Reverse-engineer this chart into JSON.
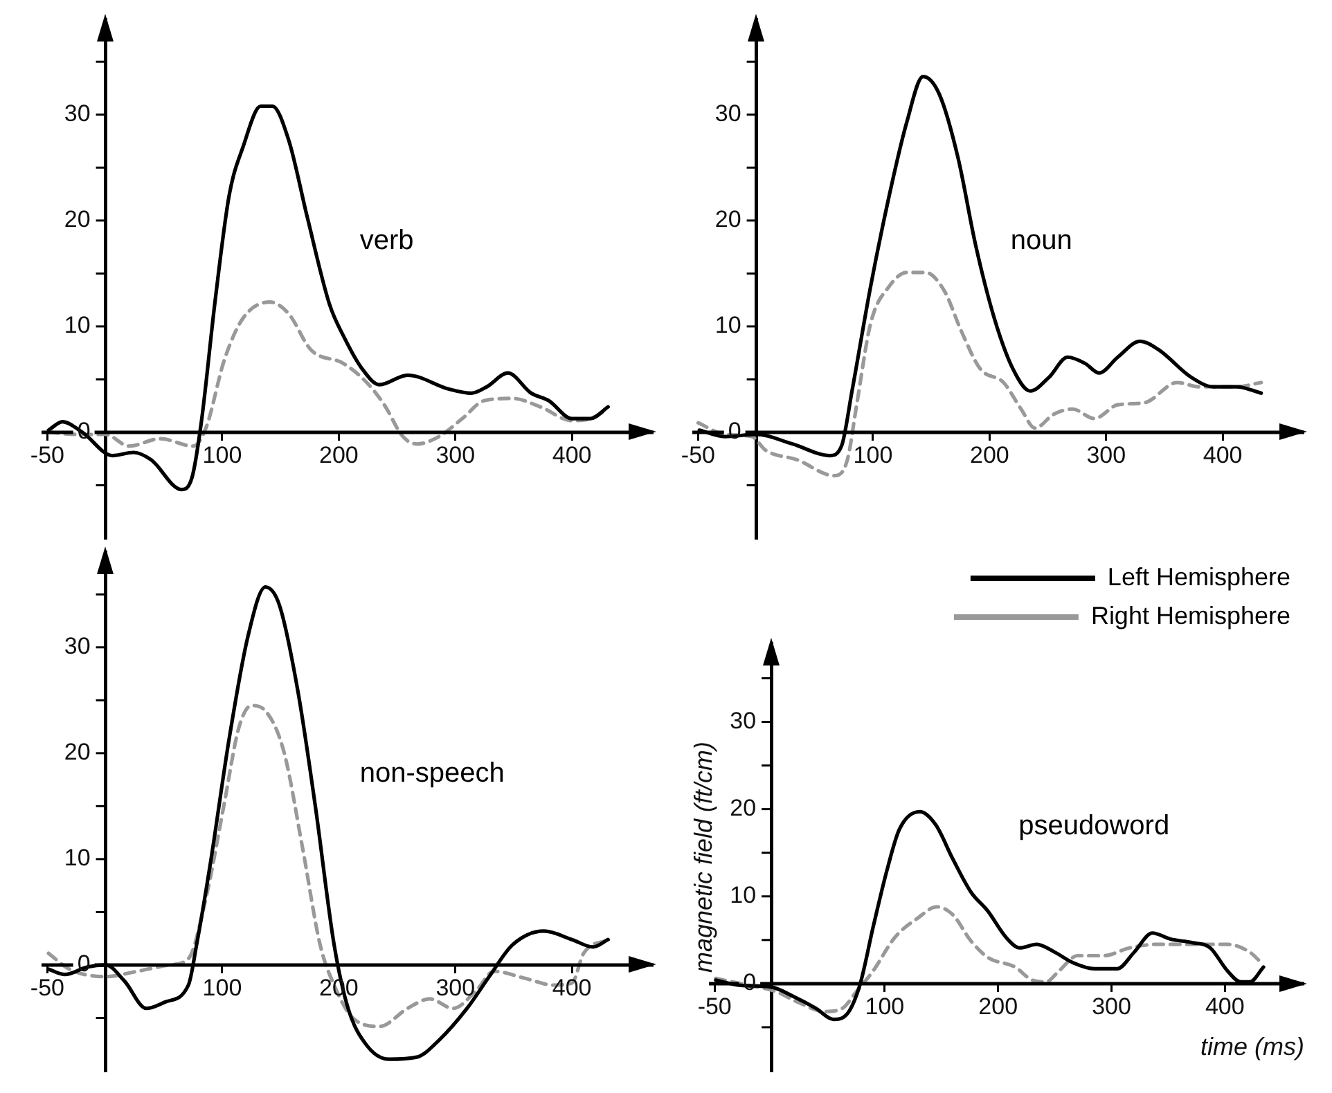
{
  "chart_data": [
    {
      "type": "line",
      "title": "verb",
      "xlim": [
        -55,
        470
      ],
      "ylim": [
        -10,
        39
      ],
      "xticks": [
        -50,
        100,
        200,
        300,
        400
      ],
      "yticks": [
        {
          "value": -5,
          "label": null
        },
        0,
        {
          "value": 5,
          "label": null
        },
        10,
        {
          "value": 15,
          "label": null
        },
        20,
        {
          "value": 25,
          "label": null
        },
        30,
        {
          "value": 35,
          "label": null
        }
      ],
      "marker": "none",
      "legend": false,
      "series": [
        {
          "color": "#000000",
          "line_style": "solid",
          "x": [
            -49,
            -37,
            -20,
            6,
            24,
            39,
            65,
            74,
            82,
            94,
            106,
            118,
            133,
            143,
            157,
            173,
            192,
            204,
            220,
            235,
            259,
            294,
            314,
            327,
            345,
            365,
            380,
            400,
            416,
            431
          ],
          "values": [
            0.2,
            1,
            0,
            -2.2,
            -1.9,
            -2.6,
            -5.4,
            -4.3,
            0.9,
            12.5,
            22.4,
            27,
            30.8,
            30.8,
            27.6,
            20.3,
            12.1,
            9.1,
            6,
            4.5,
            5.4,
            4.1,
            3.7,
            4.3,
            5.6,
            3.7,
            3,
            1.3,
            1.3,
            2.4
          ]
        },
        {
          "color": "#999999",
          "line_style": "dashed",
          "x": [
            -49,
            -24,
            0,
            20,
            47,
            75,
            86,
            102,
            118,
            141,
            157,
            176,
            204,
            224,
            239,
            255,
            267,
            286,
            306,
            325,
            349,
            373,
            400,
            416,
            431
          ],
          "values": [
            0,
            -0.2,
            -0.2,
            -1.3,
            -0.6,
            -1.3,
            0.4,
            6.9,
            10.8,
            12.3,
            11.2,
            7.8,
            6.5,
            4.7,
            2.6,
            -0.4,
            -1.1,
            -0.4,
            1.3,
            3,
            3.2,
            2.4,
            1.1,
            1.3,
            2.2
          ]
        }
      ]
    },
    {
      "type": "line",
      "title": "noun",
      "xlim": [
        -55,
        470
      ],
      "ylim": [
        -10,
        39
      ],
      "xticks": [
        -50,
        100,
        200,
        300,
        400
      ],
      "yticks": [
        {
          "value": -5,
          "label": null
        },
        0,
        {
          "value": 5,
          "label": null
        },
        10,
        {
          "value": 15,
          "label": null
        },
        20,
        {
          "value": 25,
          "label": null
        },
        30,
        {
          "value": 35,
          "label": null
        }
      ],
      "marker": "none",
      "legend": false,
      "series": [
        {
          "color": "#000000",
          "line_style": "solid",
          "x": [
            -49,
            -27,
            0,
            31,
            63,
            73,
            82,
            98,
            114,
            129,
            143,
            157,
            173,
            188,
            204,
            220,
            235,
            251,
            267,
            282,
            294,
            310,
            329,
            345,
            373,
            392,
            412,
            433
          ],
          "values": [
            0.2,
            -0.4,
            -0.2,
            -1.1,
            -2.2,
            -1.3,
            3.9,
            13.8,
            22.4,
            29.3,
            33.6,
            31.9,
            25.9,
            17.7,
            10.8,
            6,
            3.9,
            5.2,
            7.1,
            6.5,
            5.6,
            7.1,
            8.6,
            7.8,
            5.2,
            4.3,
            4.3,
            3.7
          ]
        },
        {
          "color": "#999999",
          "line_style": "dashed",
          "x": [
            -50,
            -27,
            -4,
            8,
            35,
            67,
            78,
            86,
            98,
            114,
            129,
            145,
            161,
            176,
            192,
            212,
            227,
            239,
            255,
            271,
            290,
            310,
            333,
            361,
            380,
            412,
            433
          ],
          "values": [
            0.9,
            -0.2,
            -0.4,
            -1.7,
            -2.6,
            -4.1,
            -2.6,
            2.6,
            10.3,
            13.8,
            15.1,
            15.1,
            13.4,
            9.5,
            6,
            4.7,
            2.2,
            0.4,
            1.7,
            2.2,
            1.3,
            2.6,
            2.8,
            4.7,
            4.3,
            4.3,
            4.7
          ]
        }
      ]
    },
    {
      "type": "line",
      "title": "non-speech",
      "xlim": [
        -55,
        470
      ],
      "ylim": [
        -10,
        39
      ],
      "xticks": [
        -50,
        100,
        200,
        300,
        400
      ],
      "yticks": [
        {
          "value": -5,
          "label": null
        },
        0,
        {
          "value": 5,
          "label": null
        },
        10,
        {
          "value": 15,
          "label": null
        },
        20,
        {
          "value": 25,
          "label": null
        },
        30,
        {
          "value": 35,
          "label": null
        }
      ],
      "marker": "none",
      "legend": false,
      "series": [
        {
          "color": "#000000",
          "line_style": "solid",
          "x": [
            -49,
            -35,
            -16,
            0,
            16,
            35,
            51,
            71,
            78,
            90,
            106,
            122,
            137,
            149,
            165,
            180,
            196,
            208,
            224,
            243,
            267,
            286,
            310,
            329,
            349,
            376,
            400,
            418,
            431
          ],
          "values": [
            -0.4,
            -0.9,
            -0.2,
            0,
            -1.5,
            -4.1,
            -3.5,
            -1.9,
            1.9,
            9.7,
            21.4,
            31,
            35.7,
            34,
            25.8,
            14.9,
            1.9,
            -4.1,
            -7.6,
            -8.9,
            -8.7,
            -7.1,
            -4.1,
            -1.1,
            1.9,
            3.2,
            2.4,
            1.7,
            2.4
          ]
        },
        {
          "color": "#999999",
          "line_style": "dashed",
          "x": [
            -49,
            -31,
            0,
            27,
            55,
            71,
            86,
            102,
            114,
            125,
            137,
            153,
            169,
            184,
            196,
            212,
            235,
            259,
            278,
            298,
            318,
            333,
            361,
            384,
            400,
            410,
            431
          ],
          "values": [
            1.1,
            -0.4,
            -1.1,
            -0.6,
            0,
            0.6,
            6.3,
            15.4,
            22.3,
            24.5,
            24,
            20.1,
            11,
            1.9,
            -1.9,
            -5,
            -5.8,
            -4.1,
            -3.2,
            -4.1,
            -2.4,
            -0.6,
            -1.3,
            -1.9,
            -1.7,
            1.1,
            2.4
          ]
        }
      ]
    },
    {
      "type": "line",
      "title": "pseudoword",
      "xlabel": "time (ms)",
      "ylabel": "magnetic field (ft/cm)",
      "xlim": [
        -55,
        470
      ],
      "ylim": [
        -10,
        39
      ],
      "xticks": [
        -50,
        100,
        200,
        300,
        400
      ],
      "yticks": [
        {
          "value": -5,
          "label": null
        },
        0,
        {
          "value": 5,
          "label": null
        },
        10,
        {
          "value": 15,
          "label": null
        },
        20,
        {
          "value": 25,
          "label": null
        },
        30,
        {
          "value": 35,
          "label": null
        }
      ],
      "marker": "none",
      "legend": "top right",
      "series": [
        {
          "name": "Left Hemisphere",
          "color": "#000000",
          "line_style": "solid",
          "x": [
            -49,
            -27,
            0,
            20,
            39,
            55,
            66,
            78,
            90,
            102,
            113,
            131,
            145,
            160,
            176,
            191,
            207,
            219,
            234,
            250,
            266,
            285,
            305,
            320,
            336,
            352,
            371,
            387,
            402,
            414,
            422,
            434
          ],
          "values": [
            0.4,
            -0.2,
            -0.4,
            -1.5,
            -2.8,
            -4.1,
            -3.6,
            -0.2,
            6.6,
            13,
            17.7,
            19.7,
            18.2,
            14.3,
            10.5,
            8.3,
            5.3,
            4.1,
            4.5,
            3.6,
            2.4,
            1.7,
            1.7,
            3.6,
            5.8,
            5.1,
            4.7,
            4.1,
            1.5,
            0.2,
            0.2,
            1.9
          ]
        },
        {
          "name": "Right Hemisphere",
          "color": "#999999",
          "line_style": "dashed",
          "x": [
            -49,
            -20,
            4,
            23,
            47,
            63,
            74,
            90,
            109,
            129,
            146,
            160,
            176,
            191,
            215,
            230,
            242,
            254,
            270,
            293,
            316,
            340,
            371,
            402,
            422,
            432
          ],
          "values": [
            0.6,
            -0.2,
            -0.9,
            -2.1,
            -3.2,
            -2.8,
            -1.1,
            1.5,
            5.3,
            7.5,
            8.8,
            7.9,
            4.9,
            3,
            1.9,
            0.4,
            0.2,
            1.5,
            3.2,
            3.2,
            4.1,
            4.5,
            4.5,
            4.5,
            3.6,
            2.4
          ]
        }
      ]
    }
  ]
}
